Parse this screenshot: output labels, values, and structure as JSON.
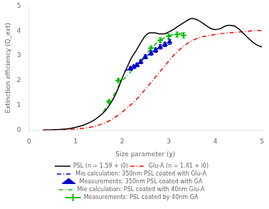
{
  "chart_data": {
    "type": "line",
    "xlabel": "Size parameter (χ)",
    "ylabel": "Extinction efficiency (Q_ext)",
    "xlim": [
      0,
      5
    ],
    "ylim": [
      0,
      5
    ],
    "xticks": [
      0,
      1,
      2,
      3,
      4,
      5
    ],
    "yticks": [
      0,
      1,
      2,
      3,
      4,
      5
    ],
    "grid": false,
    "legend": "bottom",
    "series": [
      {
        "name": "PSL (n = 1.59 + i0)",
        "color": "#000000",
        "line_style": "solid",
        "x": [
          0.3,
          0.5,
          0.7,
          0.9,
          1.0,
          1.2,
          1.4,
          1.6,
          1.7,
          1.8,
          1.9,
          2.0,
          2.1,
          2.2,
          2.3,
          2.4,
          2.5,
          2.6,
          2.7,
          2.8,
          2.9,
          3.0,
          3.1,
          3.2,
          3.3,
          3.4,
          3.5,
          3.6,
          3.7,
          3.8,
          3.9,
          4.0,
          4.1,
          4.2,
          4.3,
          4.4,
          4.5,
          4.6,
          4.7,
          4.8,
          4.9,
          5.0
        ],
        "values": [
          0.0,
          0.01,
          0.03,
          0.07,
          0.11,
          0.22,
          0.4,
          0.7,
          0.92,
          1.22,
          1.6,
          2.08,
          2.5,
          2.9,
          3.2,
          3.52,
          3.8,
          3.92,
          3.92,
          3.88,
          3.88,
          3.95,
          4.05,
          4.18,
          4.3,
          4.42,
          4.5,
          4.45,
          4.35,
          4.22,
          4.1,
          4.05,
          4.08,
          4.18,
          4.22,
          4.2,
          4.08,
          3.9,
          3.72,
          3.55,
          3.42,
          3.35
        ]
      },
      {
        "name": "Glu-A (n = 1.41 + i0)",
        "color": "#ff0000",
        "line_style": "dashdot",
        "x": [
          0.3,
          0.5,
          0.7,
          0.9,
          1.1,
          1.3,
          1.5,
          1.7,
          1.9,
          2.1,
          2.3,
          2.5,
          2.7,
          2.9,
          3.1,
          3.3,
          3.5,
          3.7,
          3.9,
          4.1,
          4.3,
          4.5,
          4.7,
          4.9,
          5.0
        ],
        "values": [
          0.0,
          0.005,
          0.015,
          0.03,
          0.06,
          0.11,
          0.2,
          0.35,
          0.58,
          0.88,
          1.22,
          1.65,
          2.1,
          2.55,
          3.0,
          3.35,
          3.6,
          3.75,
          3.82,
          3.88,
          3.92,
          3.95,
          3.98,
          4.02,
          4.0
        ]
      },
      {
        "name": "Mie calculation: 350nm PSL coated with Glu-A",
        "color": "#0000cc",
        "line_style": "dashdot",
        "x": [
          2.05,
          2.15,
          2.22,
          2.3,
          2.42,
          2.52,
          2.62,
          2.72,
          2.82,
          2.92,
          3.02
        ],
        "values": [
          2.38,
          2.45,
          2.52,
          2.63,
          2.8,
          2.97,
          3.1,
          3.22,
          3.35,
          3.45,
          3.55
        ]
      },
      {
        "name": "Measurements: 350nm PSL coated with GA",
        "color": "#0000cc",
        "type": "scatter",
        "marker": "triangle",
        "x": [
          2.18,
          2.25,
          2.32,
          2.4,
          2.5,
          2.62,
          2.72,
          2.82,
          2.92,
          3.02
        ],
        "values": [
          2.48,
          2.55,
          2.62,
          2.75,
          2.95,
          3.1,
          3.22,
          3.35,
          3.45,
          3.55
        ],
        "yerr": [
          0.07,
          0.07,
          0.07,
          0.08,
          0.08,
          0.09,
          0.09,
          0.09,
          0.09,
          0.1
        ]
      },
      {
        "name": "Mie calculation: PSL coated with 40nm Glu-A",
        "color": "#00bb00",
        "line_style": "dashdot",
        "x": [
          1.6,
          1.72,
          1.85,
          1.95,
          2.1,
          2.3,
          2.62,
          2.82,
          3.0,
          3.18,
          3.32
        ],
        "values": [
          0.75,
          1.08,
          1.5,
          1.85,
          2.18,
          2.58,
          3.28,
          3.62,
          3.8,
          3.87,
          3.9
        ]
      },
      {
        "name": "Measurements: PSL coated by 40nm GA",
        "color": "#00bb00",
        "type": "scatter",
        "marker": "plus",
        "x": [
          1.72,
          1.92,
          2.62,
          2.82,
          3.0,
          3.18,
          3.32
        ],
        "values": [
          1.15,
          2.0,
          3.3,
          3.62,
          3.78,
          3.85,
          3.82
        ],
        "yerr": [
          0.06,
          0.06,
          0.08,
          0.09,
          0.09,
          0.1,
          0.1
        ]
      }
    ]
  }
}
